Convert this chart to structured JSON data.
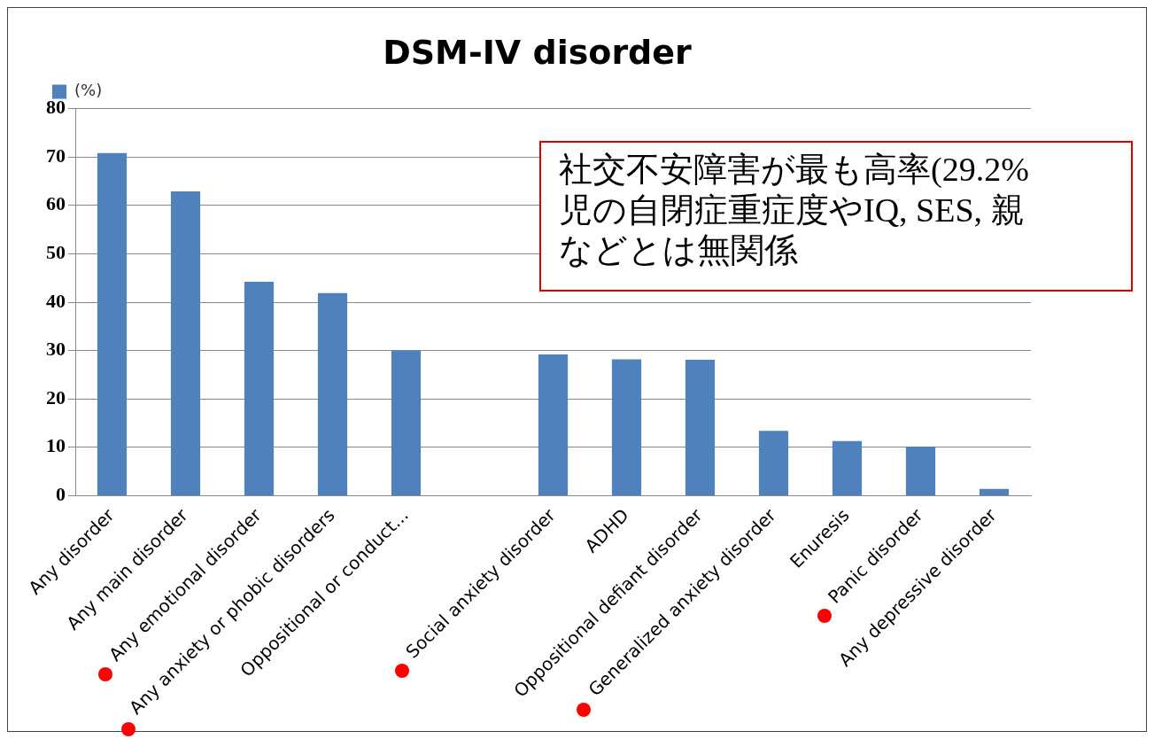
{
  "chart_data": {
    "type": "bar",
    "title": "DSM-IV disorder",
    "categories": [
      "Any disorder",
      "Any main disorder",
      "Any emotional disorder",
      "Any anxiety or phobic disorders",
      "Oppositional or conduct...",
      null,
      "Social anxiety disorder",
      "ADHD",
      "Oppositional defiant disorder",
      "Generalized anxiety disorder",
      "Enuresis",
      "Panic disorder",
      "Any depressive disorder"
    ],
    "series": [
      {
        "name": "(%)",
        "color": "#4f81bd",
        "values": [
          70.8,
          62.9,
          44.2,
          41.9,
          30.0,
          null,
          29.2,
          28.2,
          28.1,
          13.4,
          11.3,
          10.1,
          1.4
        ]
      }
    ],
    "ylim": [
      0,
      80
    ],
    "yticks": [
      0,
      10,
      20,
      30,
      40,
      50,
      60,
      70,
      80
    ],
    "grid": "y",
    "legend": "top left",
    "annotations": [
      "社交不安障害が最も高率(29.2%",
      "児の自閉症重症度やIQ, SES, 親",
      "などとは無関係"
    ]
  }
}
